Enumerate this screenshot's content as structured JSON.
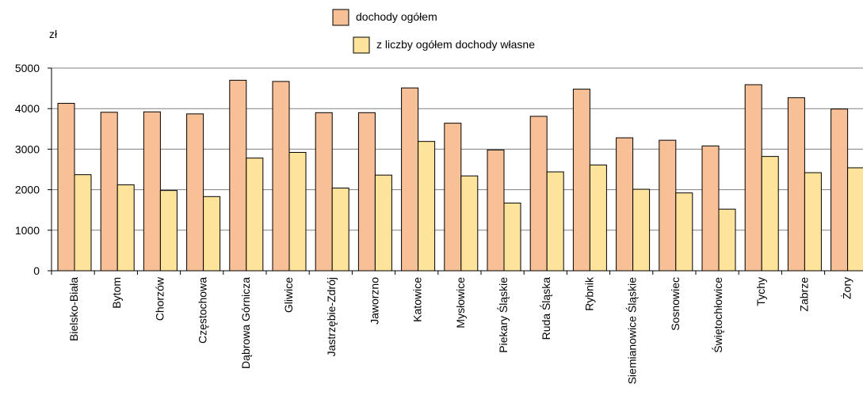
{
  "chart_data": {
    "type": "bar",
    "unit_label": "zł",
    "categories": [
      "Bielsko-Biała",
      "Bytom",
      "Chorzów",
      "Częstochowa",
      "Dąbrowa Górnicza",
      "Gliwice",
      "Jastrzębie-Zdrój",
      "Jaworzno",
      "Katowice",
      "Mysłowice",
      "Piekary Śląskie",
      "Ruda Śląska",
      "Rybnik",
      "Siemianowice Śląskie",
      "Sosnowiec",
      "Świętochłowice",
      "Tychy",
      "Zabrze",
      "Żory"
    ],
    "series": [
      {
        "name": "dochody ogółem",
        "color": "#f8c097",
        "values": [
          4130,
          3910,
          3920,
          3870,
          4700,
          4670,
          3900,
          3900,
          4510,
          3640,
          2980,
          3810,
          4480,
          3280,
          3220,
          3080,
          4590,
          4270,
          3990
        ]
      },
      {
        "name": "z liczby ogółem dochody własne",
        "color": "#fde49a",
        "values": [
          2370,
          2120,
          1980,
          1830,
          2780,
          2920,
          2040,
          2360,
          3190,
          2340,
          1670,
          2440,
          2610,
          2010,
          1920,
          1520,
          2820,
          2420,
          2540
        ]
      }
    ],
    "ylim": [
      0,
      5000
    ],
    "yticks": [
      "0",
      "1000",
      "2000",
      "3000",
      "4000",
      "5000"
    ],
    "grid": true,
    "legend_position": "top-center"
  }
}
